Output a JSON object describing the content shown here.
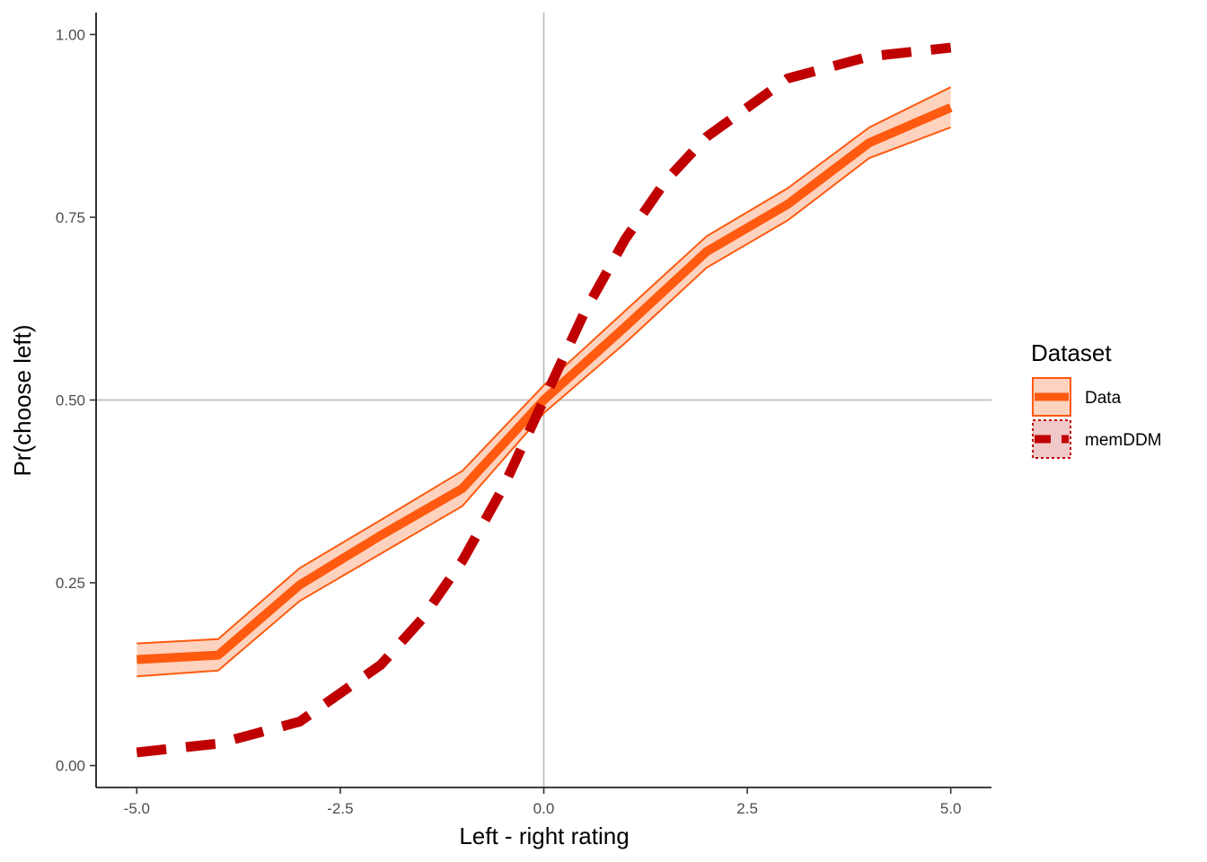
{
  "chart_data": {
    "type": "line",
    "xlabel": "Left - right rating",
    "ylabel": "Pr(choose left)",
    "xlim": [
      -5.5,
      5.5
    ],
    "ylim": [
      -0.03,
      1.03
    ],
    "x_ticks": [
      -5.0,
      -2.5,
      0.0,
      2.5,
      5.0
    ],
    "x_tick_labels": [
      "-5.0",
      "-2.5",
      "0.0",
      "2.5",
      "5.0"
    ],
    "y_ticks": [
      0.0,
      0.25,
      0.5,
      0.75,
      1.0
    ],
    "y_tick_labels": [
      "0.00",
      "0.25",
      "0.50",
      "0.75",
      "1.00"
    ],
    "reference_lines": {
      "x": 0.0,
      "y": 0.5,
      "color": "#bebebe"
    },
    "grid": false,
    "legend": {
      "title": "Dataset",
      "position": "right"
    },
    "series": [
      {
        "name": "Data",
        "style": "solid",
        "color": "#ff5a0f",
        "ribbon_fill": "#fdd3bf",
        "x": [
          -5,
          -4,
          -3,
          -2,
          -1,
          0,
          1,
          2,
          3,
          4,
          5
        ],
        "y": [
          0.145,
          0.151,
          0.247,
          0.315,
          0.379,
          0.5,
          0.6,
          0.703,
          0.768,
          0.852,
          0.9
        ],
        "lower": [
          0.122,
          0.13,
          0.225,
          0.29,
          0.355,
          0.482,
          0.578,
          0.681,
          0.746,
          0.831,
          0.873
        ],
        "upper": [
          0.167,
          0.173,
          0.27,
          0.336,
          0.403,
          0.52,
          0.622,
          0.724,
          0.79,
          0.873,
          0.928
        ]
      },
      {
        "name": "memDDM",
        "style": "dashed",
        "color": "#c00000",
        "ribbon_fill": "#f0c8c8",
        "x": [
          -5,
          -4,
          -3,
          -2,
          -1.5,
          -1,
          -0.5,
          0,
          0.5,
          1,
          1.5,
          2,
          3,
          4,
          5
        ],
        "y": [
          0.018,
          0.03,
          0.06,
          0.138,
          0.2,
          0.28,
          0.38,
          0.5,
          0.62,
          0.72,
          0.8,
          0.86,
          0.94,
          0.97,
          0.982
        ]
      }
    ]
  }
}
